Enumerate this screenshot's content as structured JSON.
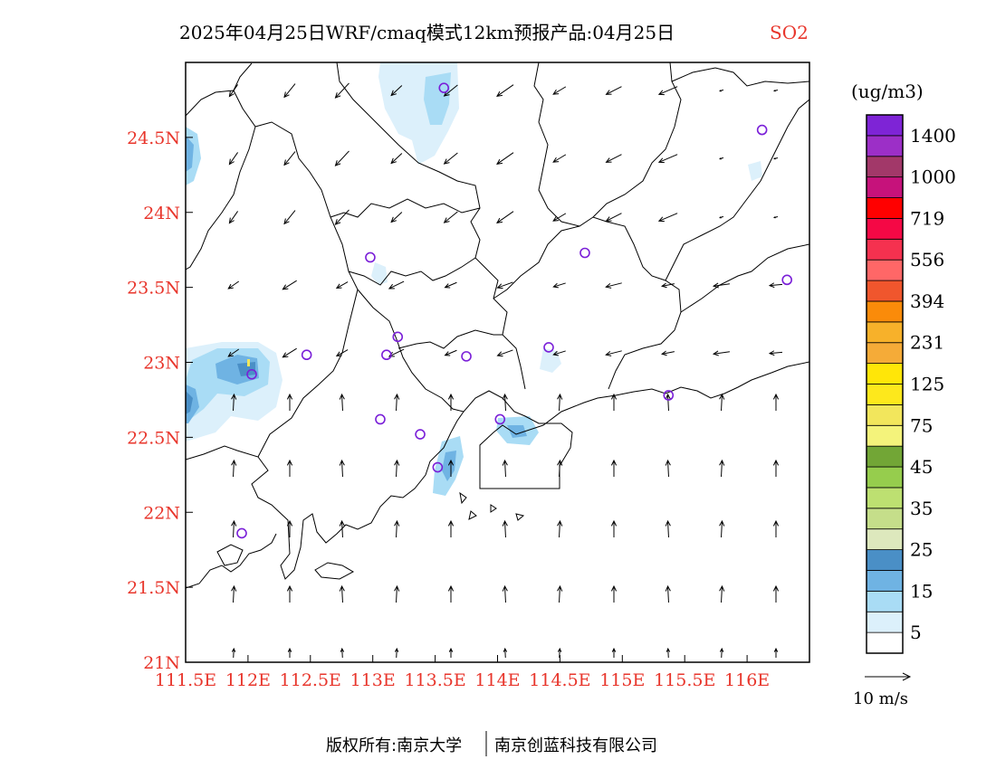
{
  "title": {
    "main": "2025年04月25日WRF/cmaq模式12km预报产品:04月25日",
    "variable": "SO2",
    "variable_color": "#e8362c"
  },
  "map": {
    "lon_range": [
      111.5,
      116.5
    ],
    "lat_range": [
      21.0,
      25.0
    ],
    "x_ticks": [
      "111.5E",
      "112E",
      "112.5E",
      "113E",
      "113.5E",
      "114E",
      "114.5E",
      "115E",
      "115.5E",
      "116E"
    ],
    "x_tick_values": [
      111.5,
      112.0,
      112.5,
      113.0,
      113.5,
      114.0,
      114.5,
      115.0,
      115.5,
      116.0
    ],
    "y_ticks": [
      "24.5N",
      "24N",
      "23.5N",
      "23N",
      "22.5N",
      "22N",
      "21.5N",
      "21N"
    ],
    "y_tick_values": [
      24.5,
      24.0,
      23.5,
      23.0,
      22.5,
      22.0,
      21.5,
      21.0
    ],
    "tick_color": "#e8362c",
    "stations": [
      [
        113.57,
        24.83
      ],
      [
        116.12,
        24.55
      ],
      [
        112.98,
        23.7
      ],
      [
        114.7,
        23.73
      ],
      [
        116.32,
        23.55
      ],
      [
        113.2,
        23.17
      ],
      [
        112.47,
        23.05
      ],
      [
        113.11,
        23.05
      ],
      [
        113.75,
        23.04
      ],
      [
        114.41,
        23.1
      ],
      [
        112.03,
        22.92
      ],
      [
        115.37,
        22.78
      ],
      [
        113.06,
        22.62
      ],
      [
        113.38,
        22.52
      ],
      [
        114.02,
        22.62
      ],
      [
        113.52,
        22.3
      ],
      [
        111.95,
        21.86
      ]
    ],
    "station_color": "#7a1fd8"
  },
  "wind_key": {
    "label": "10 m/s"
  },
  "colorbar": {
    "unit": "(ug/m3)",
    "colors": [
      "#ffffff",
      "#dcf0fb",
      "#a9dcf5",
      "#6fb3e3",
      "#4a8fc6",
      "#dde8bd",
      "#c5de8a",
      "#bde071",
      "#96cd4d",
      "#72a636",
      "#f4f37b",
      "#f2e65c",
      "#fde81c",
      "#ffe608",
      "#f5ab38",
      "#f7b12a",
      "#fa8b0a",
      "#f0562d",
      "#ff6767",
      "#f5314f",
      "#f50845",
      "#ff0000",
      "#c6127b",
      "#a23869",
      "#9c2fc7",
      "#7e24d6"
    ],
    "labels": [
      "5",
      "15",
      "25",
      "35",
      "45",
      "75",
      "125",
      "231",
      "394",
      "556",
      "719",
      "1000",
      "1400"
    ]
  },
  "footer": {
    "left": "版权所有:南京大学",
    "right": "南京创蓝科技有限公司"
  }
}
